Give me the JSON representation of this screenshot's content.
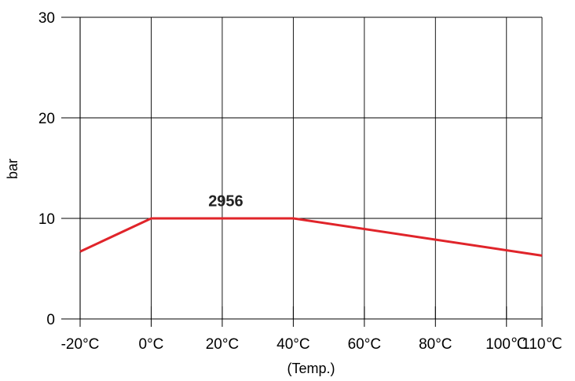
{
  "chart_data": {
    "type": "line",
    "title": "",
    "xlabel": "(Temp.)",
    "ylabel": "bar",
    "x_ticks": [
      -20,
      0,
      20,
      40,
      60,
      80,
      100,
      110
    ],
    "x_tick_labels": [
      "-20°C",
      "0°C",
      "20°C",
      "40°C",
      "60°C",
      "80°C",
      "100℃",
      "110℃"
    ],
    "y_ticks": [
      0,
      10,
      20,
      30
    ],
    "y_tick_labels": [
      "0",
      "10",
      "20",
      "30"
    ],
    "xlim": [
      -20,
      110
    ],
    "ylim": [
      0,
      30
    ],
    "grid": true,
    "series": [
      {
        "name": "2956",
        "color": "#e0242a",
        "x": [
          -20,
          0,
          40,
          110
        ],
        "y": [
          6.7,
          10,
          10,
          6.3
        ]
      }
    ],
    "annotations": [
      {
        "text": "2956",
        "x": 21,
        "y": 11.2
      }
    ]
  }
}
